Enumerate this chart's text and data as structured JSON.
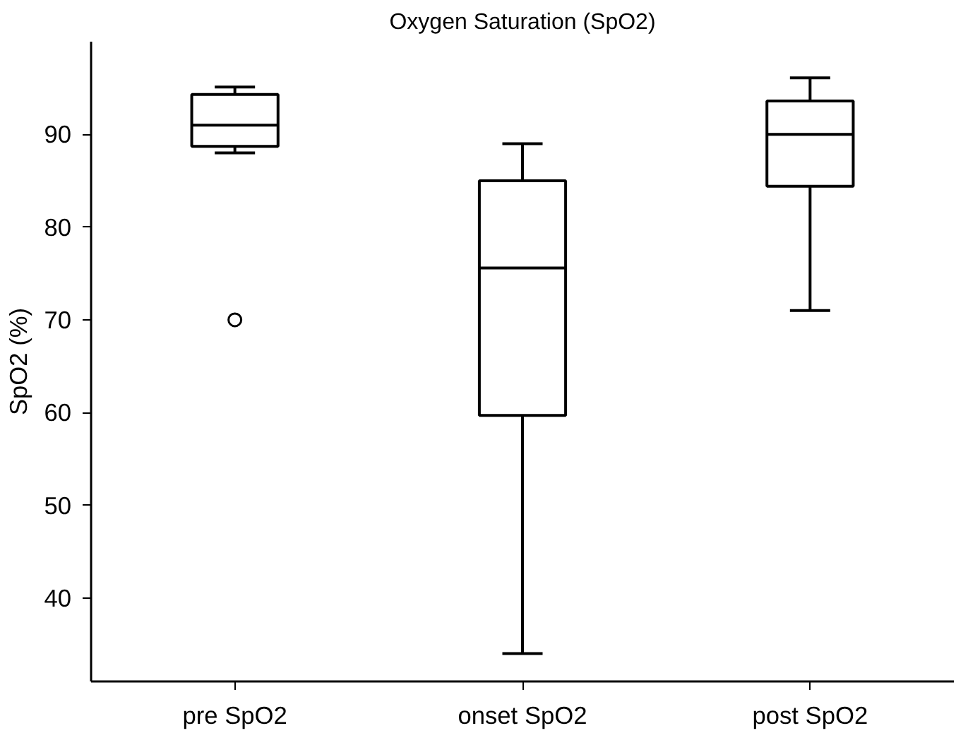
{
  "chart_data": {
    "type": "box",
    "title": "Oxygen Saturation (SpO2)",
    "ylabel": "SpO2 (%)",
    "categories": [
      "pre SpO2",
      "onset SpO2",
      "post SpO2"
    ],
    "boxes": [
      {
        "low": 88.0,
        "q1": 88.7,
        "median": 91.0,
        "q3": 94.3,
        "high": 95.1,
        "outliers": [
          70
        ]
      },
      {
        "low": 34,
        "q1": 59.7,
        "median": 75.6,
        "q3": 85.0,
        "high": 89.0
      },
      {
        "low": 71.0,
        "q1": 84.4,
        "median": 90.0,
        "q3": 93.6,
        "high": 96.1
      }
    ],
    "color": "#000000",
    "ylim": [
      31,
      100
    ],
    "yticks": [
      40,
      50,
      60,
      70,
      80,
      90
    ],
    "grid": false
  }
}
